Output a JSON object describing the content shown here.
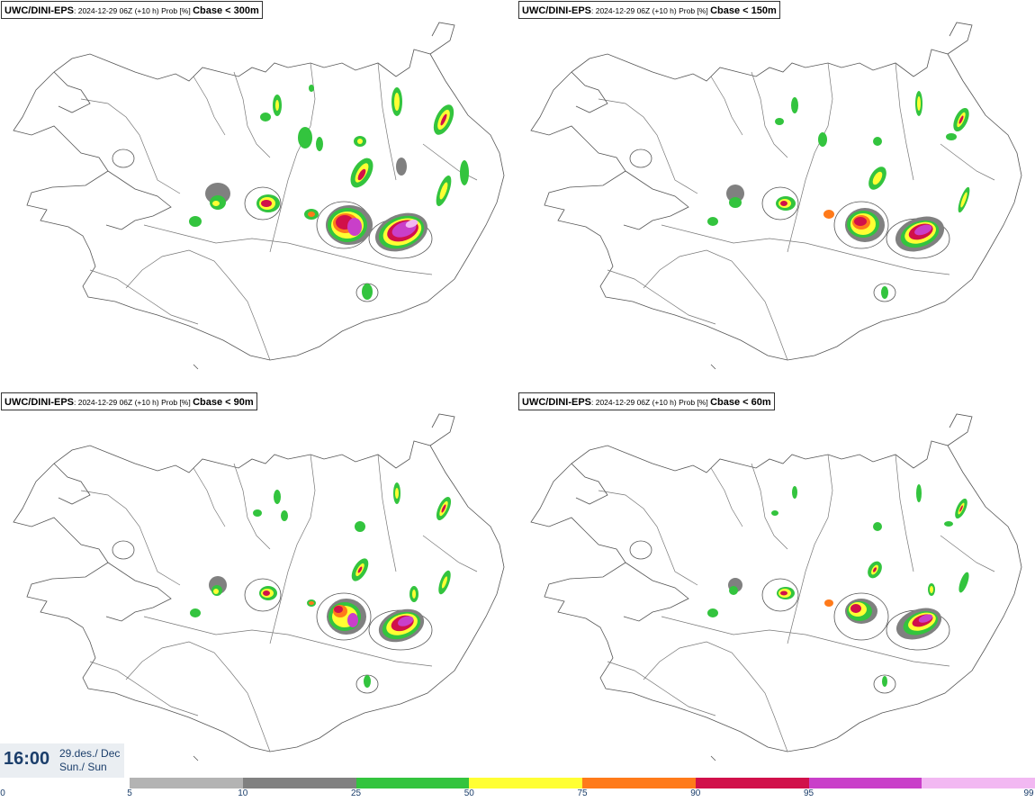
{
  "panels": [
    {
      "model": "UWC/DINI-EPS",
      "info": ": 2024-12-29 06Z (+10 h) Prob [%] ",
      "param": "Cbase < 300m"
    },
    {
      "model": "UWC/DINI-EPS",
      "info": ": 2024-12-29 06Z (+10 h) Prob [%] ",
      "param": "Cbase < 150m"
    },
    {
      "model": "UWC/DINI-EPS",
      "info": ": 2024-12-29 06Z (+10 h) Prob [%] ",
      "param": "Cbase < 90m"
    },
    {
      "model": "UWC/DINI-EPS",
      "info": ": 2024-12-29 06Z (+10 h) Prob [%] ",
      "param": "Cbase < 60m"
    }
  ],
  "valid_time": {
    "time": "16:00",
    "date_line1": "29.des./ Dec",
    "date_line2": "Sun./ Sun"
  },
  "colorbar": {
    "labels": [
      "0",
      "5",
      "10",
      "25",
      "50",
      "75",
      "90",
      "95",
      "99"
    ],
    "colors": [
      "#b3b3b3",
      "#808080",
      "#33c43e",
      "#ffff33",
      "#ff7a1a",
      "#d1104a",
      "#c93fc9",
      "#f2b8f2"
    ]
  },
  "colors": {
    "land_outline": "#555555",
    "roads": "#777777"
  }
}
